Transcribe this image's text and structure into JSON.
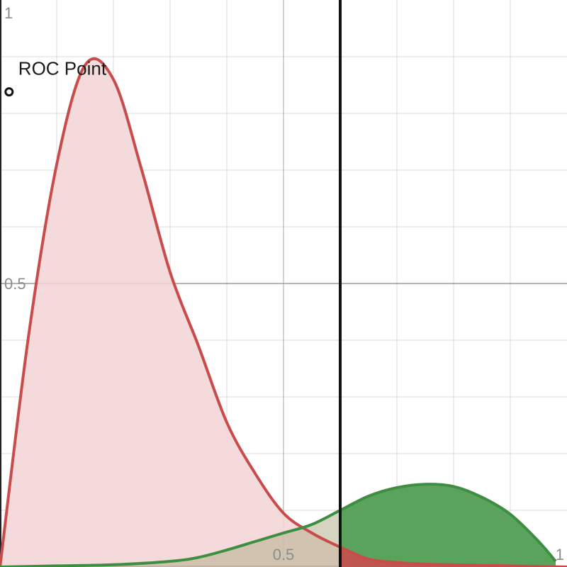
{
  "chart_data": {
    "type": "area",
    "xlim": [
      0,
      1
    ],
    "ylim": [
      0,
      1
    ],
    "x_ticks": [
      {
        "value": 0.5,
        "label": "0.5"
      },
      {
        "value": 1,
        "label": "1"
      }
    ],
    "y_ticks": [
      {
        "value": 0.5,
        "label": "0.5"
      },
      {
        "value": 1,
        "label": "1"
      }
    ],
    "grid": true,
    "threshold_x": 0.6,
    "roc_point": {
      "label": "ROC Point",
      "x": 0.016,
      "y": 0.838
    },
    "series": [
      {
        "color": "#c94c4c",
        "fill": "#f2d3d3",
        "x": [
          0,
          0.05,
          0.1,
          0.15,
          0.2,
          0.25,
          0.3,
          0.35,
          0.4,
          0.45,
          0.5,
          0.55,
          0.6,
          0.65,
          0.7,
          0.75,
          0.8,
          0.85,
          0.9,
          0.95,
          1
        ],
        "y": [
          0,
          0.405,
          0.71,
          0.885,
          0.86,
          0.7,
          0.52,
          0.39,
          0.255,
          0.165,
          0.095,
          0.06,
          0.035,
          0.014,
          0.008,
          0.005,
          0.004,
          0.003,
          0.002,
          0.001,
          0
        ]
      },
      {
        "color": "#3e8e41",
        "fill": "#5aa35d",
        "x": [
          0,
          0.1,
          0.2,
          0.3,
          0.35,
          0.4,
          0.45,
          0.5,
          0.55,
          0.6,
          0.65,
          0.7,
          0.75,
          0.8,
          0.85,
          0.9,
          0.95,
          0.98
        ],
        "y": [
          0,
          0.002,
          0.004,
          0.01,
          0.017,
          0.03,
          0.045,
          0.06,
          0.075,
          0.1,
          0.125,
          0.14,
          0.146,
          0.142,
          0.123,
          0.093,
          0.045,
          0.01
        ]
      }
    ]
  }
}
